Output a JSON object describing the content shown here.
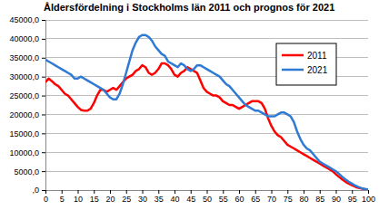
{
  "chart_data": {
    "type": "line",
    "title": "Åldersfördelning i Stockholms län 2011 och prognos för 2021",
    "x": [
      0,
      1,
      2,
      3,
      4,
      5,
      6,
      7,
      8,
      9,
      10,
      11,
      12,
      13,
      14,
      15,
      16,
      17,
      18,
      19,
      20,
      21,
      22,
      23,
      24,
      25,
      26,
      27,
      28,
      29,
      30,
      31,
      32,
      33,
      34,
      35,
      36,
      37,
      38,
      39,
      40,
      41,
      42,
      43,
      44,
      45,
      46,
      47,
      48,
      49,
      50,
      51,
      52,
      53,
      54,
      55,
      56,
      57,
      58,
      59,
      60,
      61,
      62,
      63,
      64,
      65,
      66,
      67,
      68,
      69,
      70,
      71,
      72,
      73,
      74,
      75,
      76,
      77,
      78,
      79,
      80,
      81,
      82,
      83,
      84,
      85,
      86,
      87,
      88,
      89,
      90,
      91,
      92,
      93,
      94,
      95,
      96,
      97,
      98,
      99,
      100
    ],
    "series": [
      {
        "name": "2011",
        "color": "#ff0000",
        "values": [
          28500,
          29500,
          28800,
          28000,
          27500,
          26500,
          25500,
          25000,
          24000,
          23000,
          22000,
          21200,
          21000,
          21000,
          21500,
          23000,
          25000,
          26500,
          26500,
          26000,
          26500,
          27000,
          26500,
          27500,
          28500,
          29500,
          30000,
          30500,
          31500,
          32000,
          33000,
          32500,
          31000,
          30500,
          31000,
          32000,
          33500,
          33500,
          33000,
          32000,
          30500,
          30000,
          31000,
          31500,
          32500,
          32000,
          31500,
          31000,
          29000,
          27000,
          26000,
          25500,
          25000,
          25000,
          24500,
          23500,
          23000,
          22500,
          22500,
          22000,
          21500,
          22000,
          22500,
          23000,
          23500,
          23500,
          23500,
          23000,
          21500,
          19000,
          17000,
          15500,
          14500,
          14000,
          13000,
          12000,
          11500,
          11000,
          10500,
          10000,
          9500,
          9000,
          8500,
          8000,
          7500,
          7000,
          6500,
          6000,
          5500,
          5000,
          4200,
          3500,
          2800,
          2200,
          1700,
          1300,
          900,
          600,
          400,
          250,
          200
        ]
      },
      {
        "name": "2021",
        "color": "#2f7bd4",
        "values": [
          34500,
          34000,
          33500,
          33000,
          32500,
          32000,
          31500,
          31000,
          30500,
          29500,
          29500,
          30000,
          29500,
          29000,
          28500,
          28000,
          27500,
          27000,
          26500,
          25500,
          24500,
          24000,
          24000,
          25500,
          28000,
          31000,
          34000,
          37000,
          39000,
          40500,
          41000,
          41000,
          40500,
          39500,
          38000,
          37000,
          36000,
          35500,
          34000,
          33500,
          33000,
          32500,
          33500,
          33000,
          32000,
          31500,
          32000,
          33000,
          33000,
          32500,
          32000,
          31500,
          31000,
          30500,
          30000,
          29000,
          28000,
          27500,
          26500,
          25500,
          24500,
          23500,
          22500,
          22000,
          21500,
          21000,
          21000,
          20500,
          20000,
          19500,
          19500,
          19500,
          20000,
          20500,
          20500,
          20000,
          19500,
          18000,
          15500,
          13500,
          12000,
          11000,
          10500,
          9500,
          8500,
          7500,
          7000,
          6500,
          6000,
          5500,
          5000,
          4300,
          3500,
          2800,
          2200,
          1700,
          1200,
          800,
          500,
          300,
          200
        ]
      }
    ],
    "xlim": [
      0,
      100
    ],
    "xticks": [
      0,
      5,
      10,
      15,
      20,
      25,
      30,
      35,
      40,
      45,
      50,
      55,
      60,
      65,
      70,
      75,
      80,
      85,
      90,
      95,
      100
    ],
    "ylim": [
      0,
      45000
    ],
    "yticks": [
      {
        "value": 0,
        "label": ",0"
      },
      {
        "value": 5000,
        "label": "5000,0"
      },
      {
        "value": 10000,
        "label": "10000,0"
      },
      {
        "value": 15000,
        "label": "15000,0"
      },
      {
        "value": 20000,
        "label": "20000,0"
      },
      {
        "value": 25000,
        "label": "25000,0"
      },
      {
        "value": 30000,
        "label": "30000,0"
      },
      {
        "value": 35000,
        "label": "35000,0"
      },
      {
        "value": 40000,
        "label": "40000,0"
      },
      {
        "value": 45000,
        "label": "45000,0"
      }
    ],
    "grid": true,
    "legend": "top-right"
  }
}
